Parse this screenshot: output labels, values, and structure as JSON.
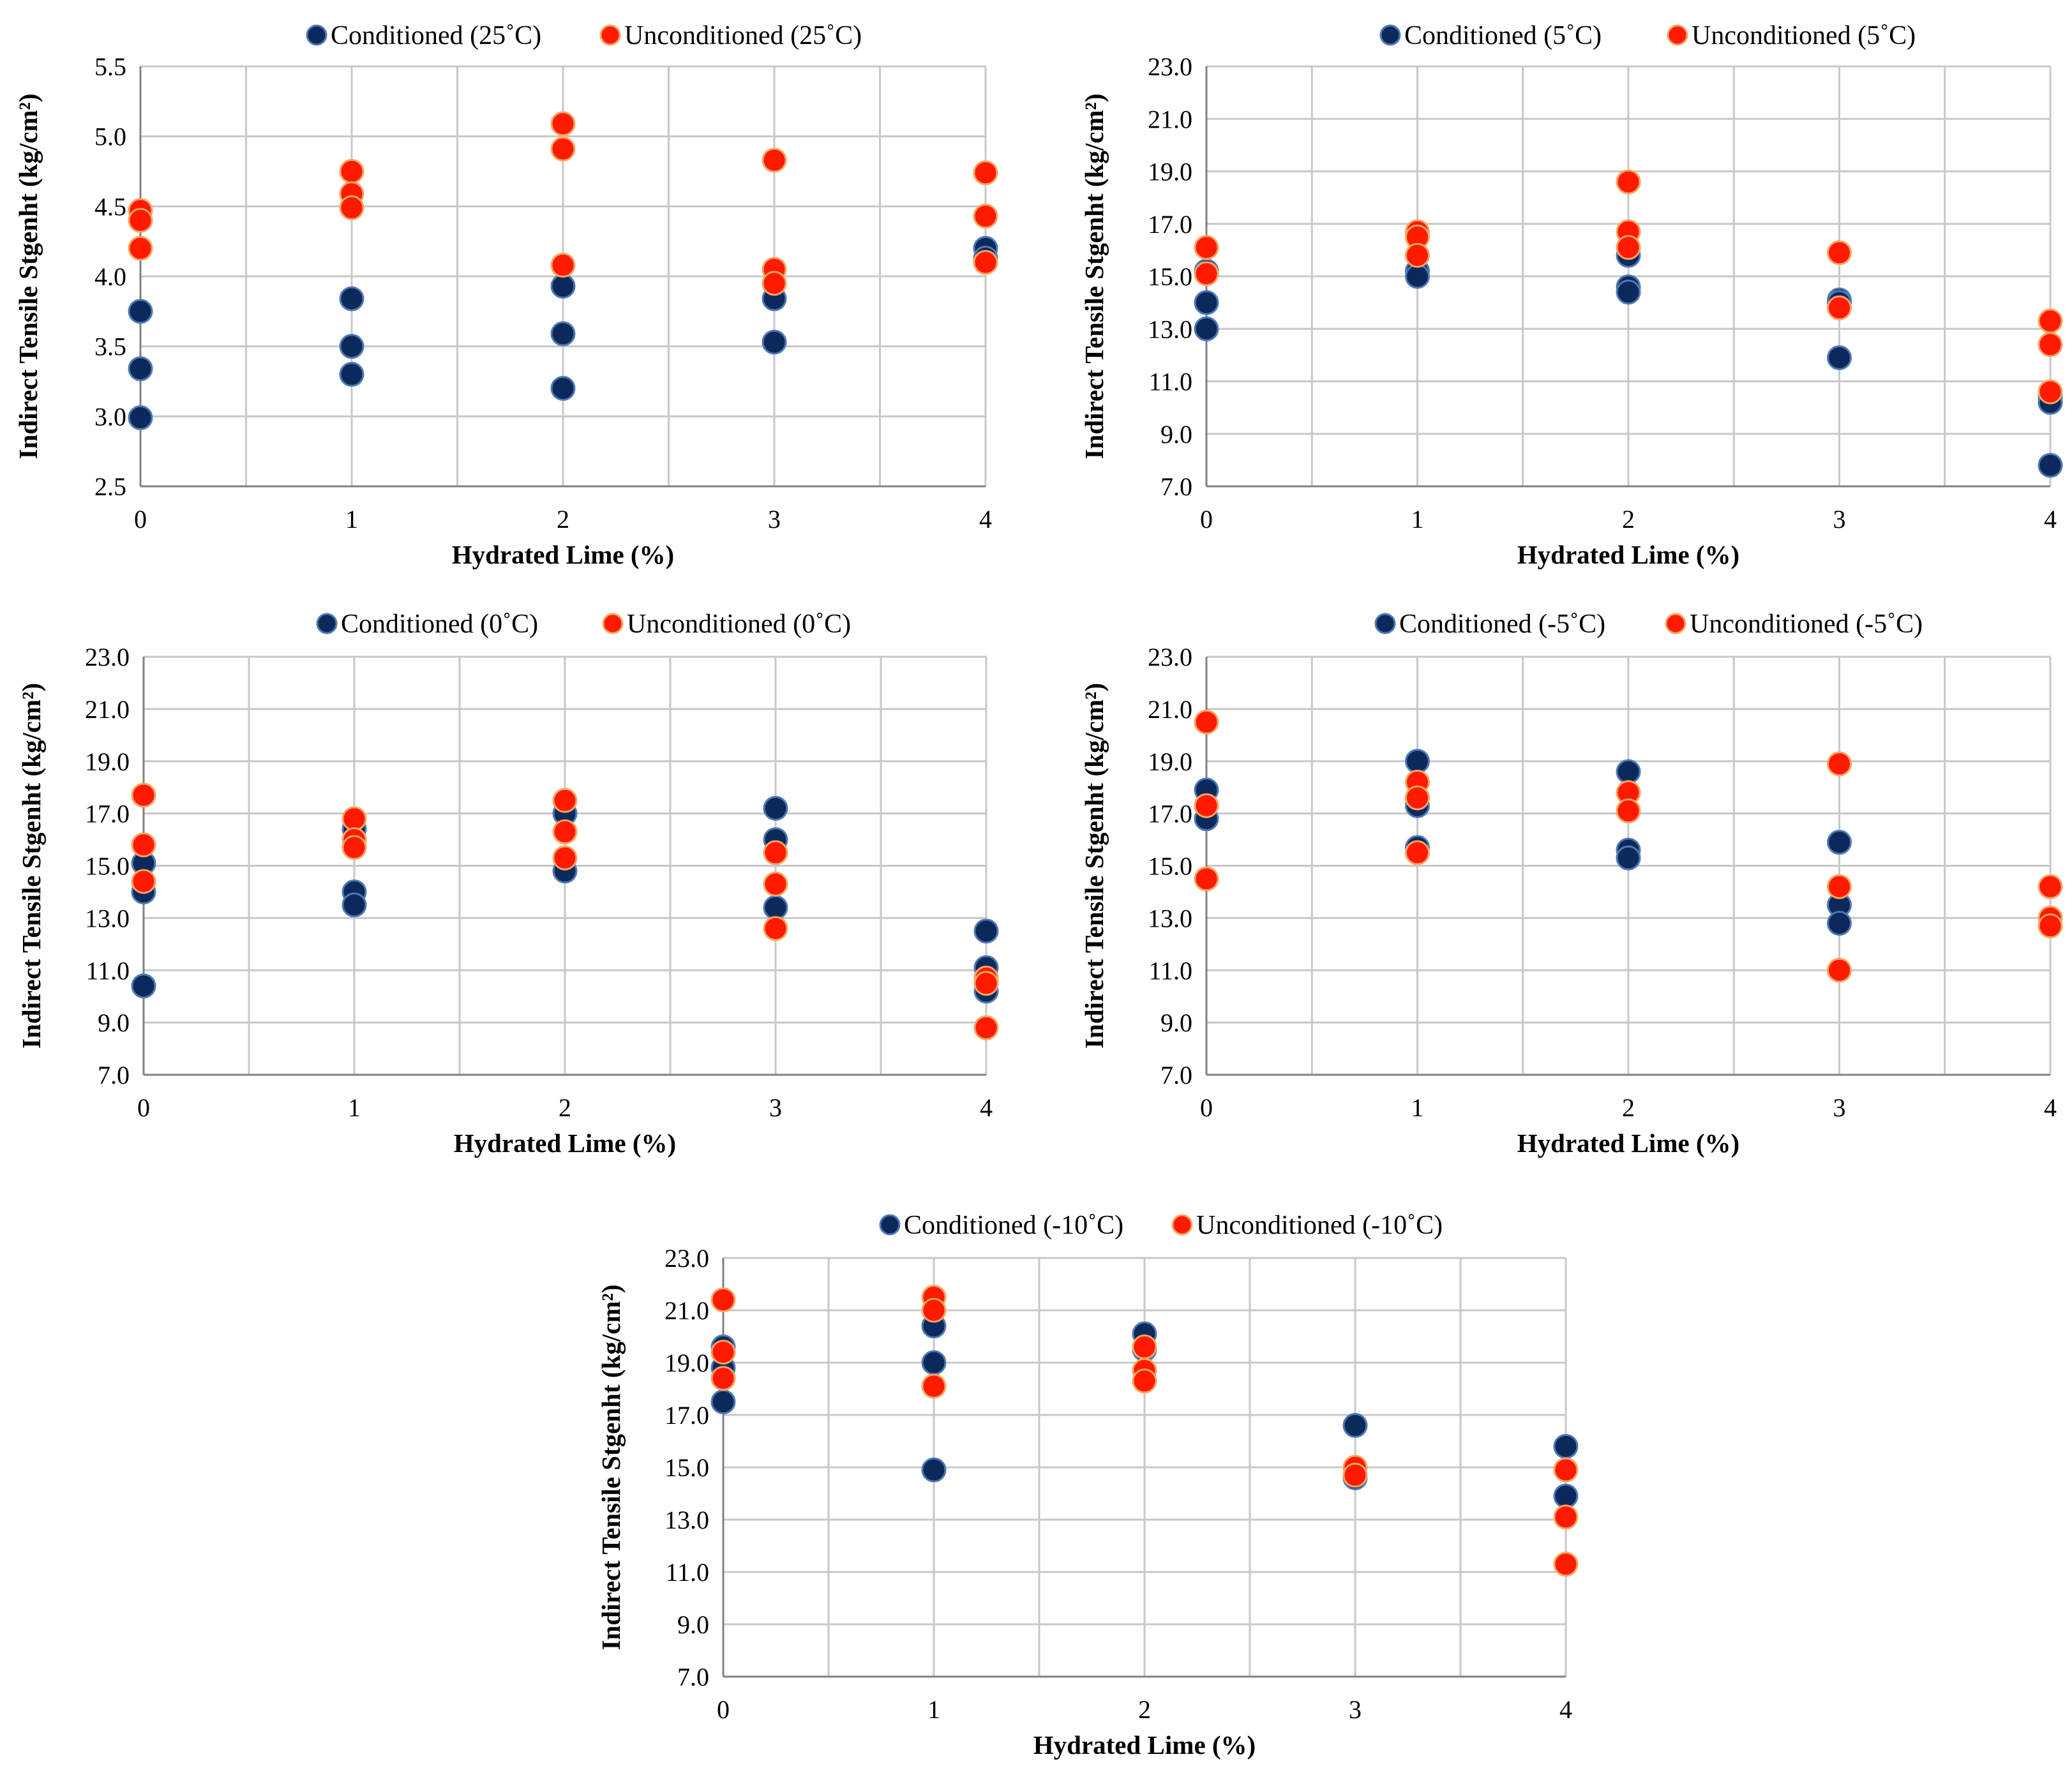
{
  "colors": {
    "conditioned": "#0b2a5b",
    "conditioned_edge": "#4f79b5",
    "unconditioned": "#ff1a00",
    "unconditioned_edge": "#f4a460",
    "grid": "#c8c8c8",
    "axis": "#808080"
  },
  "chart_data": [
    {
      "type": "scatter",
      "xlabel": "Hydrated Lime (%)",
      "ylabel": "Indirect Tensile Stgenht (kg/cm²)",
      "xlim": [
        0,
        4
      ],
      "ylim": [
        2.5,
        5.5
      ],
      "yticks": [
        "2.5",
        "3.0",
        "3.5",
        "4.0",
        "4.5",
        "5.0",
        "5.5"
      ],
      "xticks": [
        "0",
        "1",
        "2",
        "3",
        "4"
      ],
      "legend_placement": "top",
      "series": [
        {
          "name": "Conditioned (25˚C)",
          "points": [
            [
              0,
              3.75
            ],
            [
              0,
              3.34
            ],
            [
              0,
              2.99
            ],
            [
              1,
              3.84
            ],
            [
              1,
              3.5
            ],
            [
              1,
              3.3
            ],
            [
              2,
              3.93
            ],
            [
              2,
              3.59
            ],
            [
              2,
              3.2
            ],
            [
              3,
              3.84
            ],
            [
              3,
              3.53
            ],
            [
              4,
              4.2
            ],
            [
              4,
              4.13
            ]
          ]
        },
        {
          "name": "Unconditioned (25˚C)",
          "points": [
            [
              0,
              4.47
            ],
            [
              0,
              4.4
            ],
            [
              0,
              4.2
            ],
            [
              1,
              4.75
            ],
            [
              1,
              4.59
            ],
            [
              1,
              4.49
            ],
            [
              2,
              5.09
            ],
            [
              2,
              4.91
            ],
            [
              2,
              4.08
            ],
            [
              3,
              4.83
            ],
            [
              3,
              4.05
            ],
            [
              3,
              3.95
            ],
            [
              4,
              4.74
            ],
            [
              4,
              4.43
            ],
            [
              4,
              4.1
            ]
          ]
        }
      ]
    },
    {
      "type": "scatter",
      "xlabel": "Hydrated Lime (%)",
      "ylabel": "Indirect Tensile Stgenht (kg/cm²)",
      "xlim": [
        0,
        4
      ],
      "ylim": [
        7.0,
        23.0
      ],
      "yticks": [
        "7.0",
        "9.0",
        "11.0",
        "13.0",
        "15.0",
        "17.0",
        "19.0",
        "21.0",
        "23.0"
      ],
      "xticks": [
        "0",
        "1",
        "2",
        "3",
        "4"
      ],
      "legend_placement": "top",
      "series": [
        {
          "name": "Conditioned (5˚C)",
          "points": [
            [
              0,
              15.2
            ],
            [
              0,
              14.0
            ],
            [
              0,
              13.0
            ],
            [
              1,
              15.2
            ],
            [
              1,
              15.0
            ],
            [
              2,
              15.8
            ],
            [
              2,
              14.6
            ],
            [
              2,
              14.4
            ],
            [
              3,
              14.1
            ],
            [
              3,
              14.0
            ],
            [
              3,
              11.9
            ],
            [
              4,
              10.4
            ],
            [
              4,
              10.2
            ],
            [
              4,
              7.8
            ]
          ]
        },
        {
          "name": "Unconditioned (5˚C)",
          "points": [
            [
              0,
              16.1
            ],
            [
              0,
              15.1
            ],
            [
              1,
              16.7
            ],
            [
              1,
              16.5
            ],
            [
              1,
              15.8
            ],
            [
              2,
              18.6
            ],
            [
              2,
              16.7
            ],
            [
              2,
              16.1
            ],
            [
              3,
              15.9
            ],
            [
              3,
              13.8
            ],
            [
              4,
              13.3
            ],
            [
              4,
              12.4
            ],
            [
              4,
              10.6
            ]
          ]
        }
      ]
    },
    {
      "type": "scatter",
      "xlabel": "Hydrated Lime (%)",
      "ylabel": "Indirect Tensile Stgenht (kg/cm²)",
      "xlim": [
        0,
        4
      ],
      "ylim": [
        7.0,
        23.0
      ],
      "yticks": [
        "7.0",
        "9.0",
        "11.0",
        "13.0",
        "15.0",
        "17.0",
        "19.0",
        "21.0",
        "23.0"
      ],
      "xticks": [
        "0",
        "1",
        "2",
        "3",
        "4"
      ],
      "legend_placement": "top",
      "series": [
        {
          "name": "Conditioned (0˚C)",
          "points": [
            [
              0,
              15.1
            ],
            [
              0,
              14.0
            ],
            [
              0,
              10.4
            ],
            [
              1,
              16.4
            ],
            [
              1,
              14.0
            ],
            [
              1,
              13.5
            ],
            [
              2,
              17.0
            ],
            [
              2,
              14.8
            ],
            [
              3,
              17.2
            ],
            [
              3,
              16.0
            ],
            [
              3,
              13.4
            ],
            [
              4,
              12.5
            ],
            [
              4,
              11.1
            ],
            [
              4,
              10.2
            ]
          ]
        },
        {
          "name": "Unconditioned (0˚C)",
          "points": [
            [
              0,
              17.7
            ],
            [
              0,
              15.8
            ],
            [
              0,
              14.4
            ],
            [
              1,
              16.8
            ],
            [
              1,
              16.0
            ],
            [
              1,
              15.7
            ],
            [
              2,
              17.5
            ],
            [
              2,
              16.3
            ],
            [
              2,
              15.3
            ],
            [
              3,
              15.5
            ],
            [
              3,
              14.3
            ],
            [
              3,
              12.6
            ],
            [
              4,
              10.7
            ],
            [
              4,
              10.5
            ],
            [
              4,
              8.8
            ]
          ]
        }
      ]
    },
    {
      "type": "scatter",
      "xlabel": "Hydrated Lime (%)",
      "ylabel": "Indirect Tensile Stgenht (kg/cm²)",
      "xlim": [
        0,
        4
      ],
      "ylim": [
        7.0,
        23.0
      ],
      "yticks": [
        "7.0",
        "9.0",
        "11.0",
        "13.0",
        "15.0",
        "17.0",
        "19.0",
        "21.0",
        "23.0"
      ],
      "xticks": [
        "0",
        "1",
        "2",
        "3",
        "4"
      ],
      "legend_placement": "top",
      "series": [
        {
          "name": "Conditioned (-5˚C)",
          "points": [
            [
              0,
              17.9
            ],
            [
              0,
              16.8
            ],
            [
              1,
              19.0
            ],
            [
              1,
              17.3
            ],
            [
              1,
              15.7
            ],
            [
              2,
              18.6
            ],
            [
              2,
              15.6
            ],
            [
              2,
              15.3
            ],
            [
              3,
              15.9
            ],
            [
              3,
              13.5
            ],
            [
              3,
              12.8
            ]
          ]
        },
        {
          "name": "Unconditioned (-5˚C)",
          "points": [
            [
              0,
              20.5
            ],
            [
              0,
              17.3
            ],
            [
              0,
              14.5
            ],
            [
              1,
              18.2
            ],
            [
              1,
              17.6
            ],
            [
              1,
              15.5
            ],
            [
              2,
              17.8
            ],
            [
              2,
              17.1
            ],
            [
              3,
              18.9
            ],
            [
              3,
              14.2
            ],
            [
              3,
              11.0
            ],
            [
              4,
              14.2
            ],
            [
              4,
              13.0
            ],
            [
              4,
              12.7
            ]
          ]
        }
      ]
    },
    {
      "type": "scatter",
      "xlabel": "Hydrated Lime (%)",
      "ylabel": "Indirect Tensile Stgenht (kg/cm²)",
      "xlim": [
        0,
        4
      ],
      "ylim": [
        7.0,
        23.0
      ],
      "yticks": [
        "7.0",
        "9.0",
        "11.0",
        "13.0",
        "15.0",
        "17.0",
        "19.0",
        "21.0",
        "23.0"
      ],
      "xticks": [
        "0",
        "1",
        "2",
        "3",
        "4"
      ],
      "legend_placement": "top",
      "series": [
        {
          "name": "Conditioned (-10˚C)",
          "points": [
            [
              0,
              19.6
            ],
            [
              0,
              18.8
            ],
            [
              0,
              17.5
            ],
            [
              1,
              20.4
            ],
            [
              1,
              19.0
            ],
            [
              1,
              14.9
            ],
            [
              2,
              20.1
            ],
            [
              2,
              19.5
            ],
            [
              3,
              16.6
            ],
            [
              3,
              14.6
            ],
            [
              4,
              15.8
            ],
            [
              4,
              13.9
            ]
          ]
        },
        {
          "name": "Unconditioned (-10˚C)",
          "points": [
            [
              0,
              21.4
            ],
            [
              0,
              19.4
            ],
            [
              0,
              18.4
            ],
            [
              1,
              21.5
            ],
            [
              1,
              21.0
            ],
            [
              1,
              18.1
            ],
            [
              2,
              19.6
            ],
            [
              2,
              18.7
            ],
            [
              2,
              18.3
            ],
            [
              3,
              15.0
            ],
            [
              3,
              14.7
            ],
            [
              4,
              14.9
            ],
            [
              4,
              13.1
            ],
            [
              4,
              11.3
            ]
          ]
        }
      ]
    }
  ]
}
